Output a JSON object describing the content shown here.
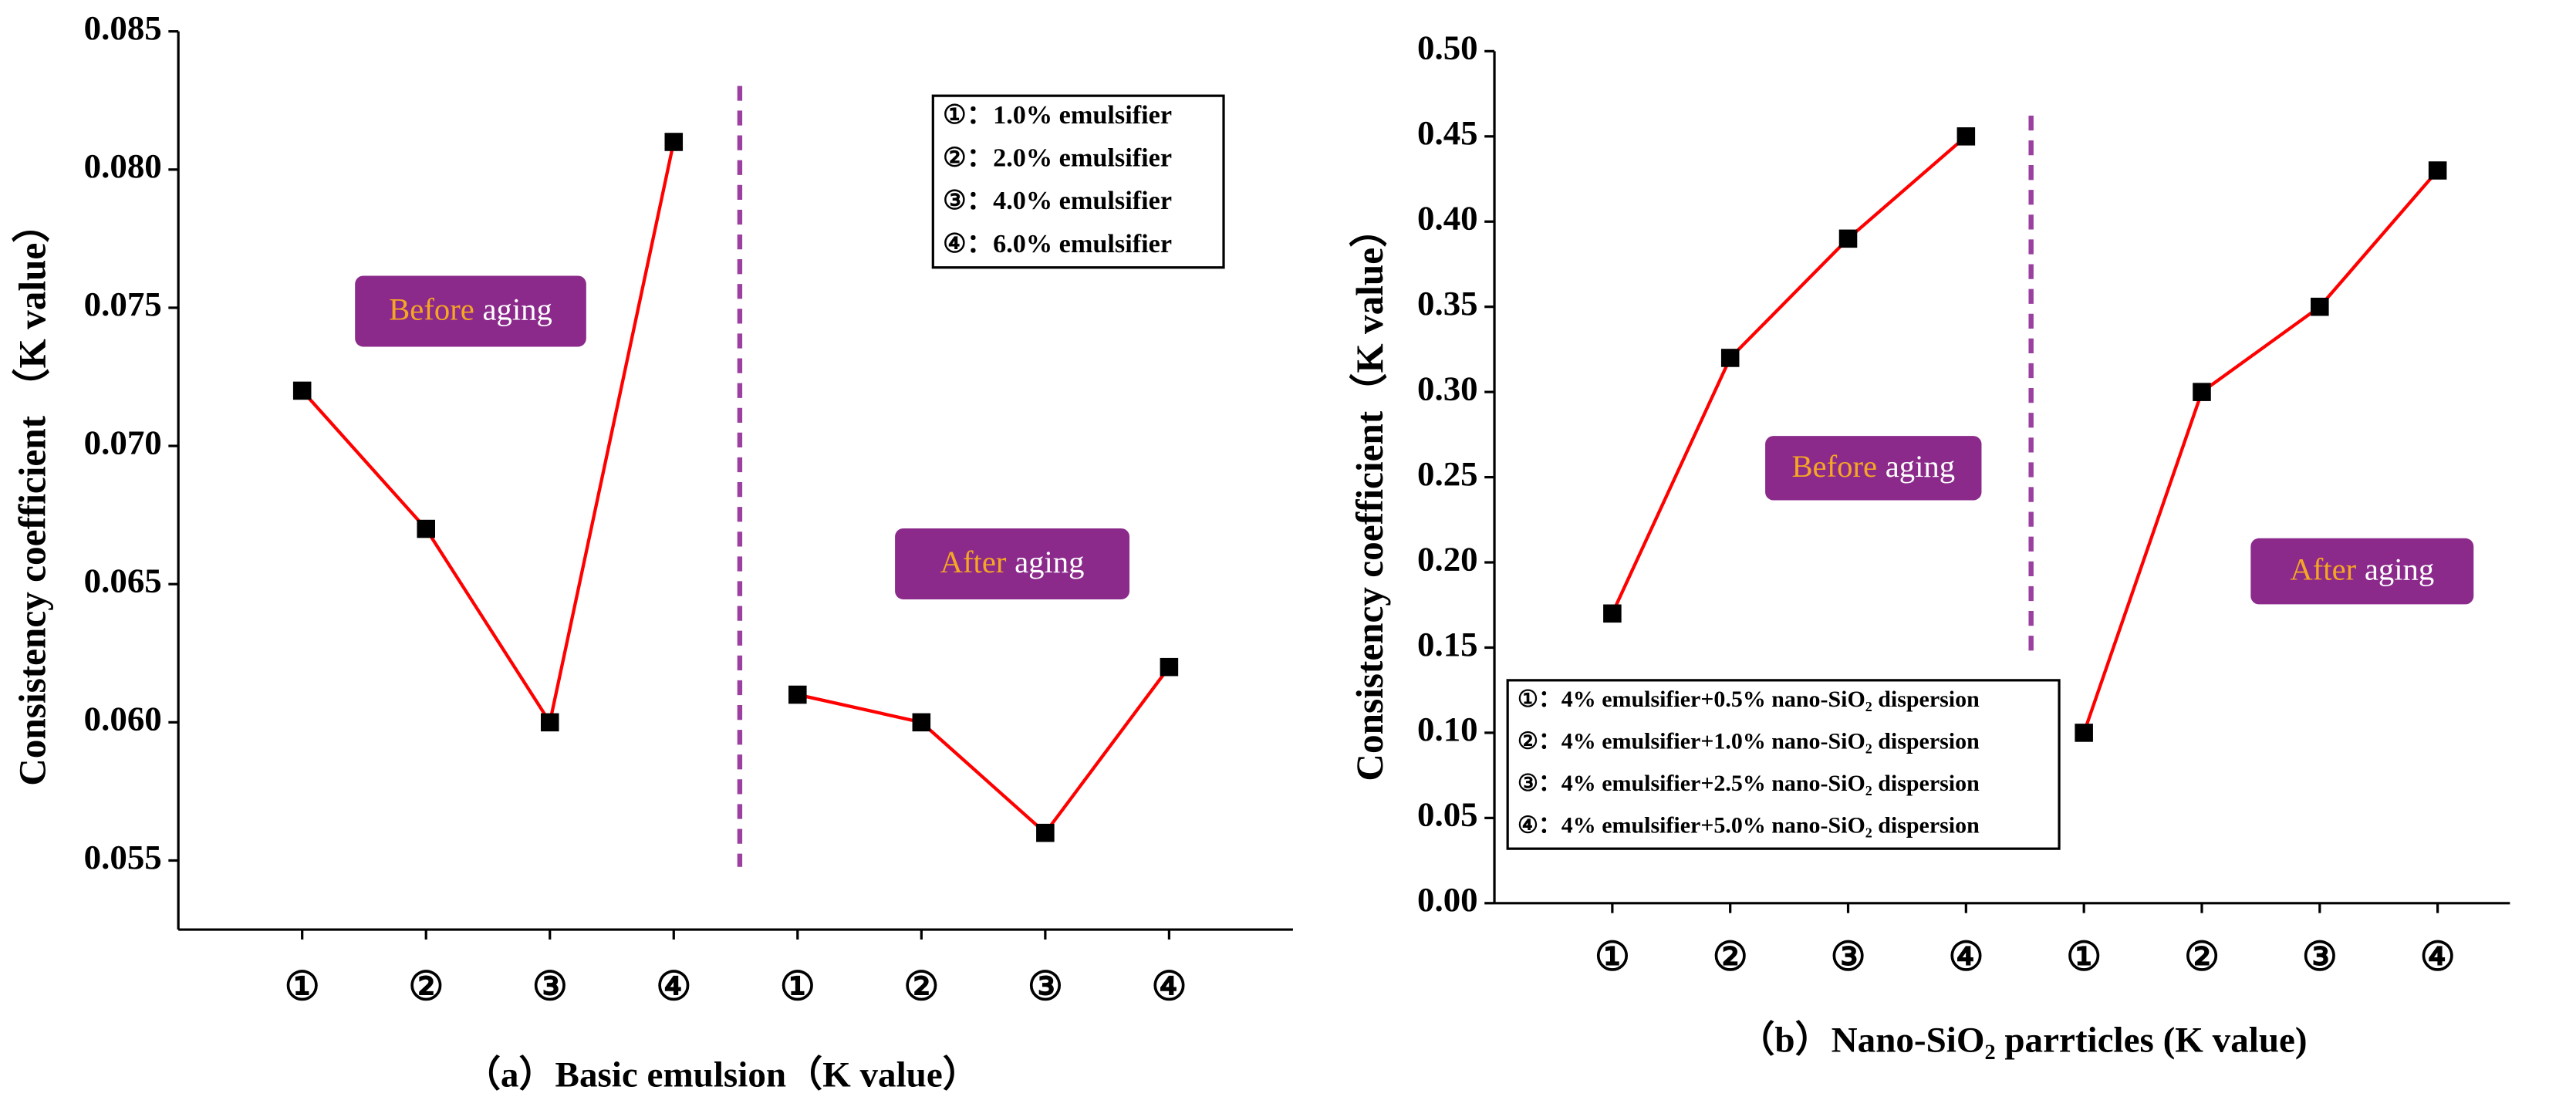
{
  "chart_data": [
    {
      "type": "line",
      "title": "（a）Basic emulsion（K value）",
      "y_label": "Consistency coefficient （K value）",
      "categories": [
        "①",
        "②",
        "③",
        "④",
        "①",
        "②",
        "③",
        "④"
      ],
      "series": [
        {
          "color": "#ff0000",
          "values": [
            0.072,
            0.067,
            0.06,
            0.081,
            null,
            null,
            null,
            null
          ]
        },
        {
          "color": "#ff0000",
          "values": [
            null,
            null,
            null,
            null,
            0.061,
            0.06,
            0.056,
            0.062
          ]
        }
      ],
      "ylim": [
        0.0525,
        0.085
      ],
      "yticks": [
        0.055,
        {
          "value": 0.06,
          "label": "0.060"
        },
        0.065,
        {
          "value": 0.07,
          "label": "0.070"
        },
        0.075,
        {
          "value": 0.08,
          "label": "0.080"
        },
        0.085
      ],
      "legend": [
        "①：1.0% emulsifier",
        "②：2.0% emulsifier",
        "③：4.0% emulsifier",
        "④：6.0% emulsifier"
      ],
      "annotations": [
        {
          "parts": [
            "Before",
            "aging"
          ]
        },
        {
          "parts": [
            "After",
            "aging"
          ]
        }
      ]
    },
    {
      "type": "line",
      "title": "（b）Nano-SiO₂ parrticles (K value)",
      "y_label": "Consistency coefficient（K value）",
      "categories": [
        "①",
        "②",
        "③",
        "④",
        "①",
        "②",
        "③",
        "④"
      ],
      "series": [
        {
          "color": "#ff0000",
          "values": [
            0.17,
            0.32,
            0.39,
            0.45,
            null,
            null,
            null,
            null
          ]
        },
        {
          "color": "#ff0000",
          "values": [
            null,
            null,
            null,
            null,
            0.1,
            0.3,
            0.35,
            0.43
          ]
        }
      ],
      "ylim": [
        0,
        0.5
      ],
      "yticks": [
        {
          "value": 0,
          "label": "0.00"
        },
        0.05,
        {
          "value": 0.1,
          "label": "0.10"
        },
        0.15,
        {
          "value": 0.2,
          "label": "0.20"
        },
        0.25,
        {
          "value": 0.3,
          "label": "0.30"
        },
        0.35,
        {
          "value": 0.4,
          "label": "0.40"
        },
        0.45,
        {
          "value": 0.5,
          "label": "0.50"
        }
      ],
      "legend": [
        "①：4% emulsifier+0.5% nano-SiO₂ dispersion",
        "②：4% emulsifier+1.0% nano-SiO₂ dispersion",
        "③：4% emulsifier+2.5% nano-SiO₂ dispersion",
        "④：4% emulsifier+5.0% nano-SiO₂ dispersion"
      ],
      "annotations": [
        {
          "parts": [
            "Before",
            "aging"
          ]
        },
        {
          "parts": [
            "After",
            "aging"
          ]
        }
      ]
    }
  ]
}
